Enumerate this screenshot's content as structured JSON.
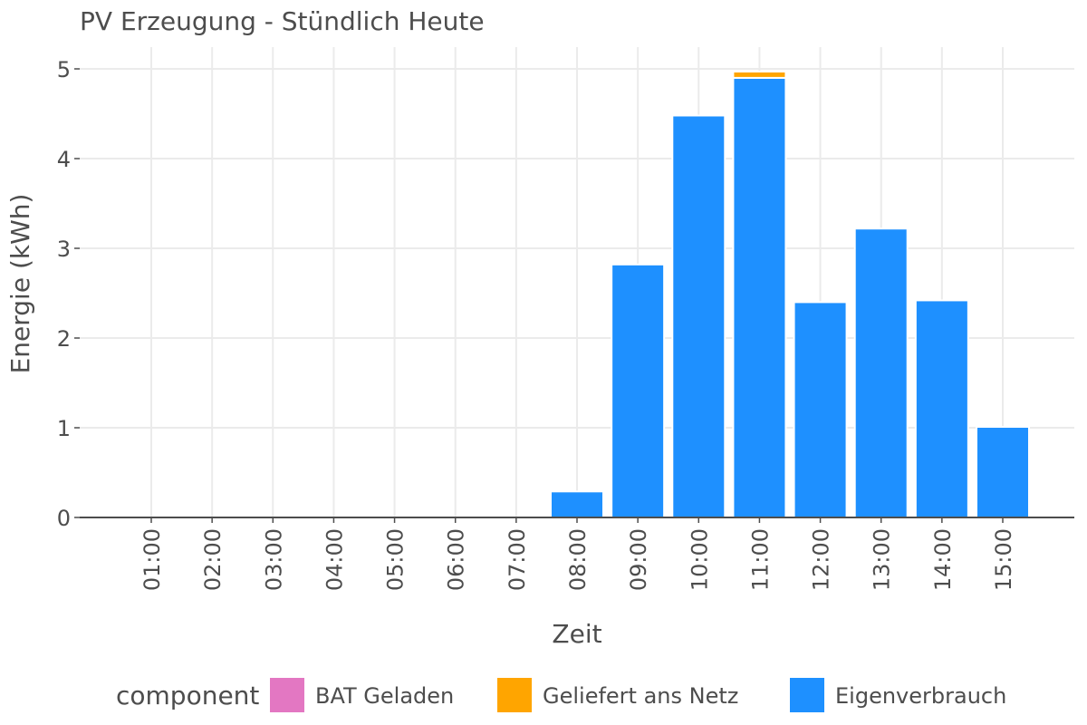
{
  "chart_data": {
    "type": "bar",
    "stacked": true,
    "title": "PV Erzeugung - Stündlich Heute",
    "xlabel": "Zeit",
    "ylabel": "Energie (kWh)",
    "ylim": [
      0,
      5.2
    ],
    "yticks": [
      0,
      1,
      2,
      3,
      4,
      5
    ],
    "grid": true,
    "legend_title": "component",
    "legend_position": "bottom",
    "categories": [
      "01:00",
      "02:00",
      "03:00",
      "04:00",
      "05:00",
      "06:00",
      "07:00",
      "08:00",
      "09:00",
      "10:00",
      "11:00",
      "12:00",
      "13:00",
      "14:00",
      "15:00"
    ],
    "series": [
      {
        "name": "Eigenverbrauch",
        "color": "#1E90FF",
        "values": [
          0,
          0,
          0,
          0,
          0,
          0,
          0,
          0.29,
          2.82,
          4.48,
          4.9,
          2.4,
          3.22,
          2.42,
          1.01
        ]
      },
      {
        "name": "Geliefert ans Netz",
        "color": "#FFA500",
        "values": [
          0,
          0,
          0,
          0,
          0,
          0,
          0,
          0,
          0,
          0,
          0.07,
          0,
          0,
          0,
          0
        ]
      },
      {
        "name": "BAT Geladen",
        "color": "#E377C2",
        "values": [
          0,
          0,
          0,
          0,
          0,
          0,
          0,
          0,
          0,
          0,
          0,
          0,
          0,
          0,
          0
        ]
      }
    ],
    "legend_order": [
      "BAT Geladen",
      "Geliefert ans Netz",
      "Eigenverbrauch"
    ]
  }
}
